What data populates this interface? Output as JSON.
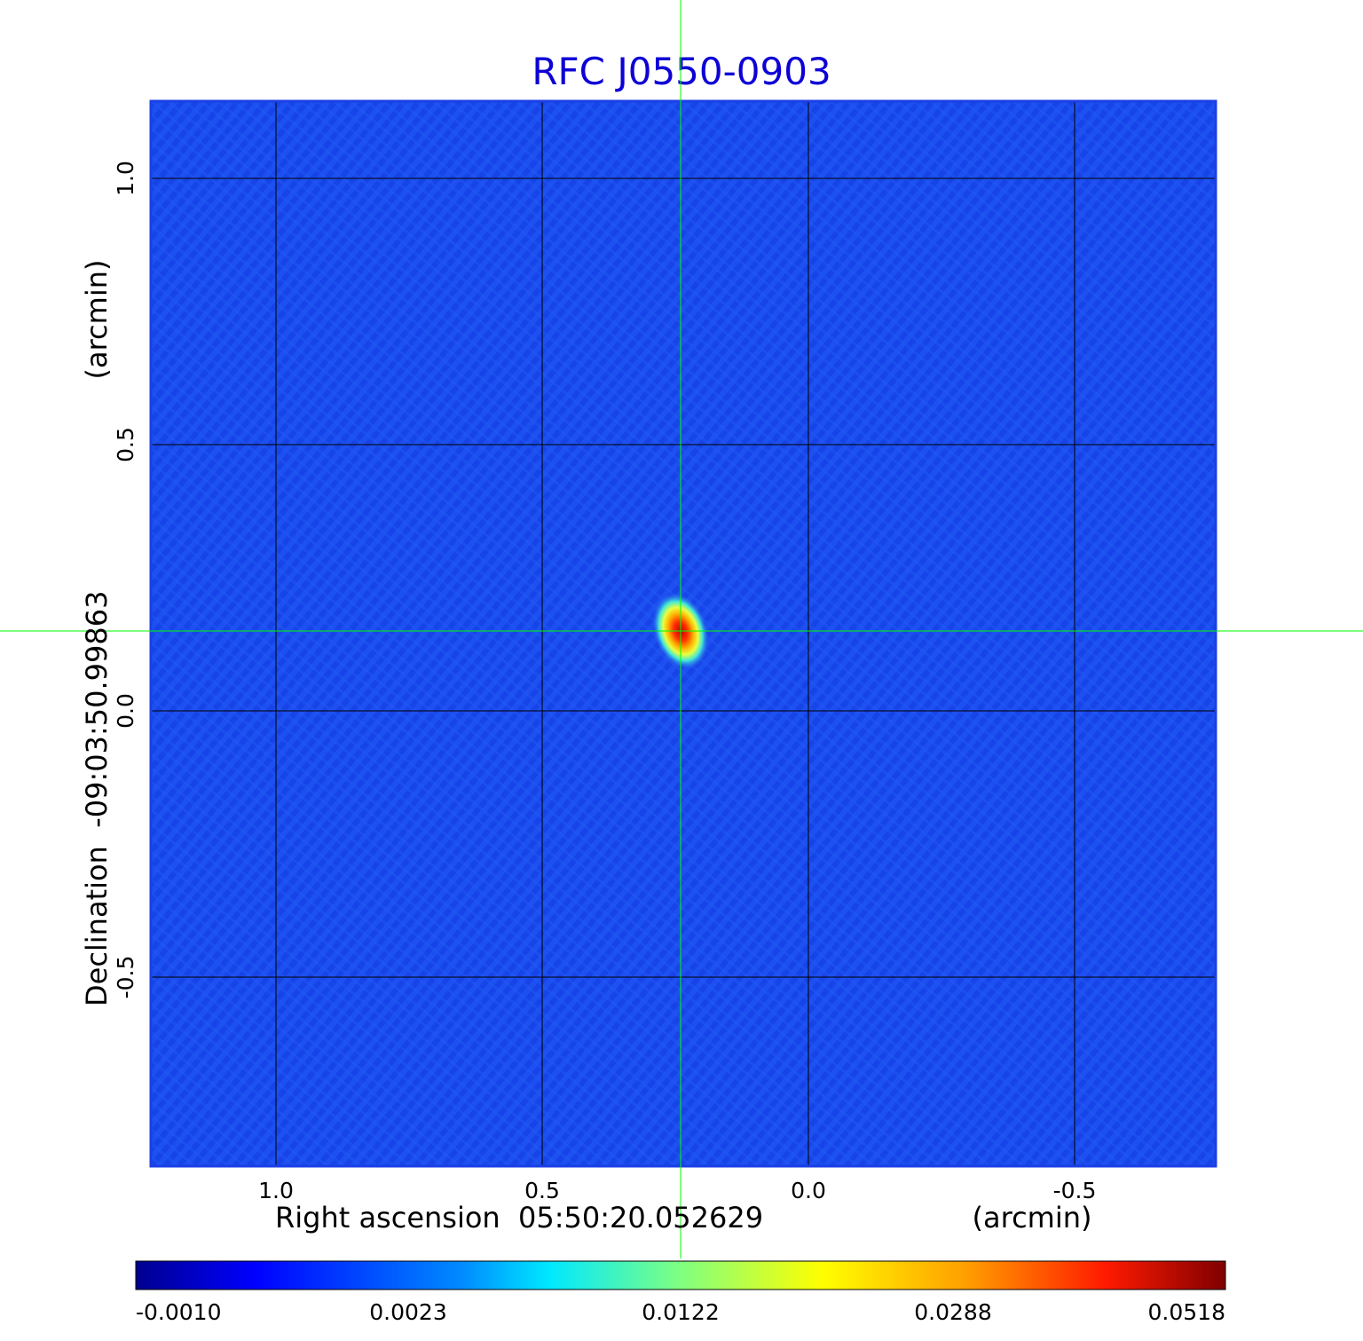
{
  "chart_data": {
    "type": "heatmap",
    "title": "RFC J0550-0903",
    "xlabel": "Right ascension  05:50:20.052629",
    "xunit": "(arcmin)",
    "ylabel": "Declination  -09:03:50.99863",
    "yunit": "(arcmin)",
    "x_range": [
      1.235,
      -0.765
    ],
    "y_range": [
      -0.855,
      1.145
    ],
    "x_ticks": [
      1.0,
      0.5,
      0.0,
      -0.5
    ],
    "x_tick_labels": [
      "1.0",
      "0.5",
      "0.0",
      "-0.5"
    ],
    "y_ticks": [
      1.0,
      0.5,
      0.0,
      -0.5
    ],
    "y_tick_labels": [
      "1.0",
      "0.5",
      "0.0",
      "-0.5"
    ],
    "grid": true,
    "crosshair": {
      "x": 0.24,
      "y": 0.15,
      "color": "#00ff00"
    },
    "source_peak": {
      "x": 0.24,
      "y": 0.15,
      "value": 0.0518
    },
    "colorbar": {
      "colormap": "jet",
      "tick_labels": [
        "-0.0010",
        "0.0023",
        "0.0122",
        "0.0288",
        "0.0518"
      ],
      "min": -0.001,
      "max": 0.0518
    },
    "background_color": "#1a4ef0"
  }
}
